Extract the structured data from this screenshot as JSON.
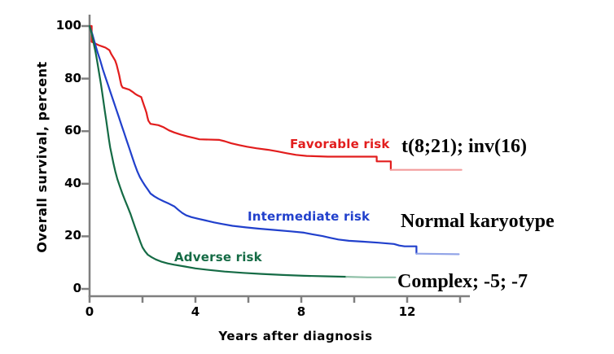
{
  "chart_data": {
    "type": "line",
    "subtype": "kaplan-meier-survival",
    "title": "",
    "xlabel": "Years after diagnosis",
    "ylabel": "Overall survival, percent",
    "xlim": [
      0,
      14.3
    ],
    "ylim": [
      0,
      100
    ],
    "grid": false,
    "axis_color": "#7f7f7f",
    "yticks": [
      100,
      80,
      60,
      40,
      20,
      0
    ],
    "xticks": {
      "labeled": [
        0,
        4,
        8,
        12
      ],
      "minor": [
        2,
        6,
        10,
        14
      ]
    },
    "legend_position": "inline-curve-labels",
    "series": [
      {
        "name": "Favorable risk",
        "annotation": "t(8;21); inv(16)",
        "color": "#e21d1d",
        "tail_color": "#f39c9c",
        "tail_from": 11.38,
        "final_value_pct": 45.3,
        "points": [
          [
            0,
            100
          ],
          [
            0.08,
            100
          ],
          [
            0.08,
            94
          ],
          [
            0.35,
            92.7
          ],
          [
            0.6,
            91.8
          ],
          [
            0.75,
            90.8
          ],
          [
            0.82,
            89.3
          ],
          [
            0.9,
            88
          ],
          [
            0.97,
            86.8
          ],
          [
            1.02,
            85.3
          ],
          [
            1.07,
            83.3
          ],
          [
            1.12,
            81.3
          ],
          [
            1.16,
            79.3
          ],
          [
            1.2,
            77.5
          ],
          [
            1.25,
            76.6
          ],
          [
            1.5,
            75.8
          ],
          [
            1.62,
            75
          ],
          [
            1.72,
            74.2
          ],
          [
            1.82,
            73.6
          ],
          [
            1.95,
            73
          ],
          [
            2.0,
            71.5
          ],
          [
            2.05,
            70
          ],
          [
            2.1,
            68.5
          ],
          [
            2.15,
            67
          ],
          [
            2.18,
            65.5
          ],
          [
            2.22,
            64
          ],
          [
            2.3,
            62.8
          ],
          [
            2.6,
            62.3
          ],
          [
            2.8,
            61.5
          ],
          [
            3.0,
            60.3
          ],
          [
            3.2,
            59.5
          ],
          [
            3.45,
            58.7
          ],
          [
            3.7,
            58
          ],
          [
            3.95,
            57.4
          ],
          [
            4.15,
            56.9
          ],
          [
            4.9,
            56.7
          ],
          [
            5.1,
            56.2
          ],
          [
            5.35,
            55.4
          ],
          [
            5.65,
            54.7
          ],
          [
            5.95,
            54.1
          ],
          [
            6.3,
            53.5
          ],
          [
            6.75,
            52.9
          ],
          [
            7.1,
            52.3
          ],
          [
            7.45,
            51.6
          ],
          [
            7.8,
            51
          ],
          [
            8.2,
            50.6
          ],
          [
            9.0,
            50.3
          ],
          [
            10.85,
            50.3
          ],
          [
            10.85,
            48.5
          ],
          [
            11.38,
            48.5
          ],
          [
            11.38,
            45.3
          ],
          [
            14.05,
            45.3
          ]
        ]
      },
      {
        "name": "Intermediate risk",
        "annotation": "Normal karyotype",
        "color": "#2140cc",
        "tail_color": "#93a5e8",
        "tail_from": 12.35,
        "final_value_pct": 13.2,
        "points": [
          [
            0,
            100
          ],
          [
            0.1,
            97
          ],
          [
            0.2,
            93.5
          ],
          [
            0.3,
            90
          ],
          [
            0.4,
            87
          ],
          [
            0.5,
            83.5
          ],
          [
            0.6,
            80.5
          ],
          [
            0.7,
            77.5
          ],
          [
            0.8,
            74.5
          ],
          [
            0.9,
            71.5
          ],
          [
            1.0,
            68.5
          ],
          [
            1.1,
            65.5
          ],
          [
            1.2,
            62.5
          ],
          [
            1.3,
            59.5
          ],
          [
            1.4,
            56.5
          ],
          [
            1.5,
            53.5
          ],
          [
            1.6,
            50.5
          ],
          [
            1.7,
            47.5
          ],
          [
            1.8,
            44.8
          ],
          [
            1.9,
            42.5
          ],
          [
            2.0,
            40.8
          ],
          [
            2.1,
            39.2
          ],
          [
            2.2,
            37.8
          ],
          [
            2.3,
            36.3
          ],
          [
            2.45,
            35.2
          ],
          [
            2.6,
            34.3
          ],
          [
            2.8,
            33.3
          ],
          [
            3.0,
            32.4
          ],
          [
            3.2,
            31.4
          ],
          [
            3.35,
            30.1
          ],
          [
            3.5,
            28.9
          ],
          [
            3.65,
            28
          ],
          [
            3.85,
            27.3
          ],
          [
            4.1,
            26.7
          ],
          [
            4.4,
            26
          ],
          [
            4.7,
            25.3
          ],
          [
            5.0,
            24.7
          ],
          [
            5.4,
            24
          ],
          [
            5.9,
            23.4
          ],
          [
            6.4,
            22.9
          ],
          [
            7.0,
            22.4
          ],
          [
            7.6,
            21.9
          ],
          [
            8.1,
            21.4
          ],
          [
            8.4,
            20.8
          ],
          [
            8.8,
            20.1
          ],
          [
            9.1,
            19.4
          ],
          [
            9.4,
            18.8
          ],
          [
            9.8,
            18.3
          ],
          [
            10.3,
            18
          ],
          [
            10.9,
            17.6
          ],
          [
            11.5,
            17.1
          ],
          [
            11.7,
            16.5
          ],
          [
            11.9,
            16.2
          ],
          [
            12.35,
            16.2
          ],
          [
            12.35,
            13.4
          ],
          [
            13.95,
            13.2
          ]
        ]
      },
      {
        "name": "Adverse risk",
        "annotation": "Complex; -5; -7",
        "color": "#156b45",
        "tail_color": "#8fc0a7",
        "tail_from": 9.9,
        "final_value_pct": 4.4,
        "points": [
          [
            0,
            100
          ],
          [
            0.07,
            97.5
          ],
          [
            0.13,
            94.8
          ],
          [
            0.18,
            92.3
          ],
          [
            0.23,
            89.8
          ],
          [
            0.28,
            87
          ],
          [
            0.33,
            84
          ],
          [
            0.38,
            81
          ],
          [
            0.43,
            77.8
          ],
          [
            0.48,
            74.5
          ],
          [
            0.53,
            71
          ],
          [
            0.58,
            67.5
          ],
          [
            0.63,
            64
          ],
          [
            0.68,
            60.5
          ],
          [
            0.73,
            57
          ],
          [
            0.78,
            53.8
          ],
          [
            0.84,
            50.8
          ],
          [
            0.9,
            47.8
          ],
          [
            0.97,
            44.8
          ],
          [
            1.05,
            41.8
          ],
          [
            1.15,
            38.8
          ],
          [
            1.25,
            36
          ],
          [
            1.35,
            33.4
          ],
          [
            1.45,
            31
          ],
          [
            1.55,
            28.4
          ],
          [
            1.63,
            26
          ],
          [
            1.72,
            23.4
          ],
          [
            1.82,
            20.6
          ],
          [
            1.92,
            17.8
          ],
          [
            2.0,
            15.8
          ],
          [
            2.1,
            14.2
          ],
          [
            2.2,
            13
          ],
          [
            2.35,
            12
          ],
          [
            2.5,
            11.2
          ],
          [
            2.7,
            10.4
          ],
          [
            2.95,
            9.7
          ],
          [
            3.2,
            9.2
          ],
          [
            3.6,
            8.5
          ],
          [
            4.0,
            7.8
          ],
          [
            4.5,
            7.2
          ],
          [
            5.1,
            6.6
          ],
          [
            5.8,
            6.1
          ],
          [
            6.5,
            5.7
          ],
          [
            7.3,
            5.3
          ],
          [
            8.1,
            5
          ],
          [
            8.9,
            4.8
          ],
          [
            9.7,
            4.6
          ],
          [
            10.5,
            4.4
          ],
          [
            11.55,
            4.4
          ]
        ]
      }
    ]
  }
}
